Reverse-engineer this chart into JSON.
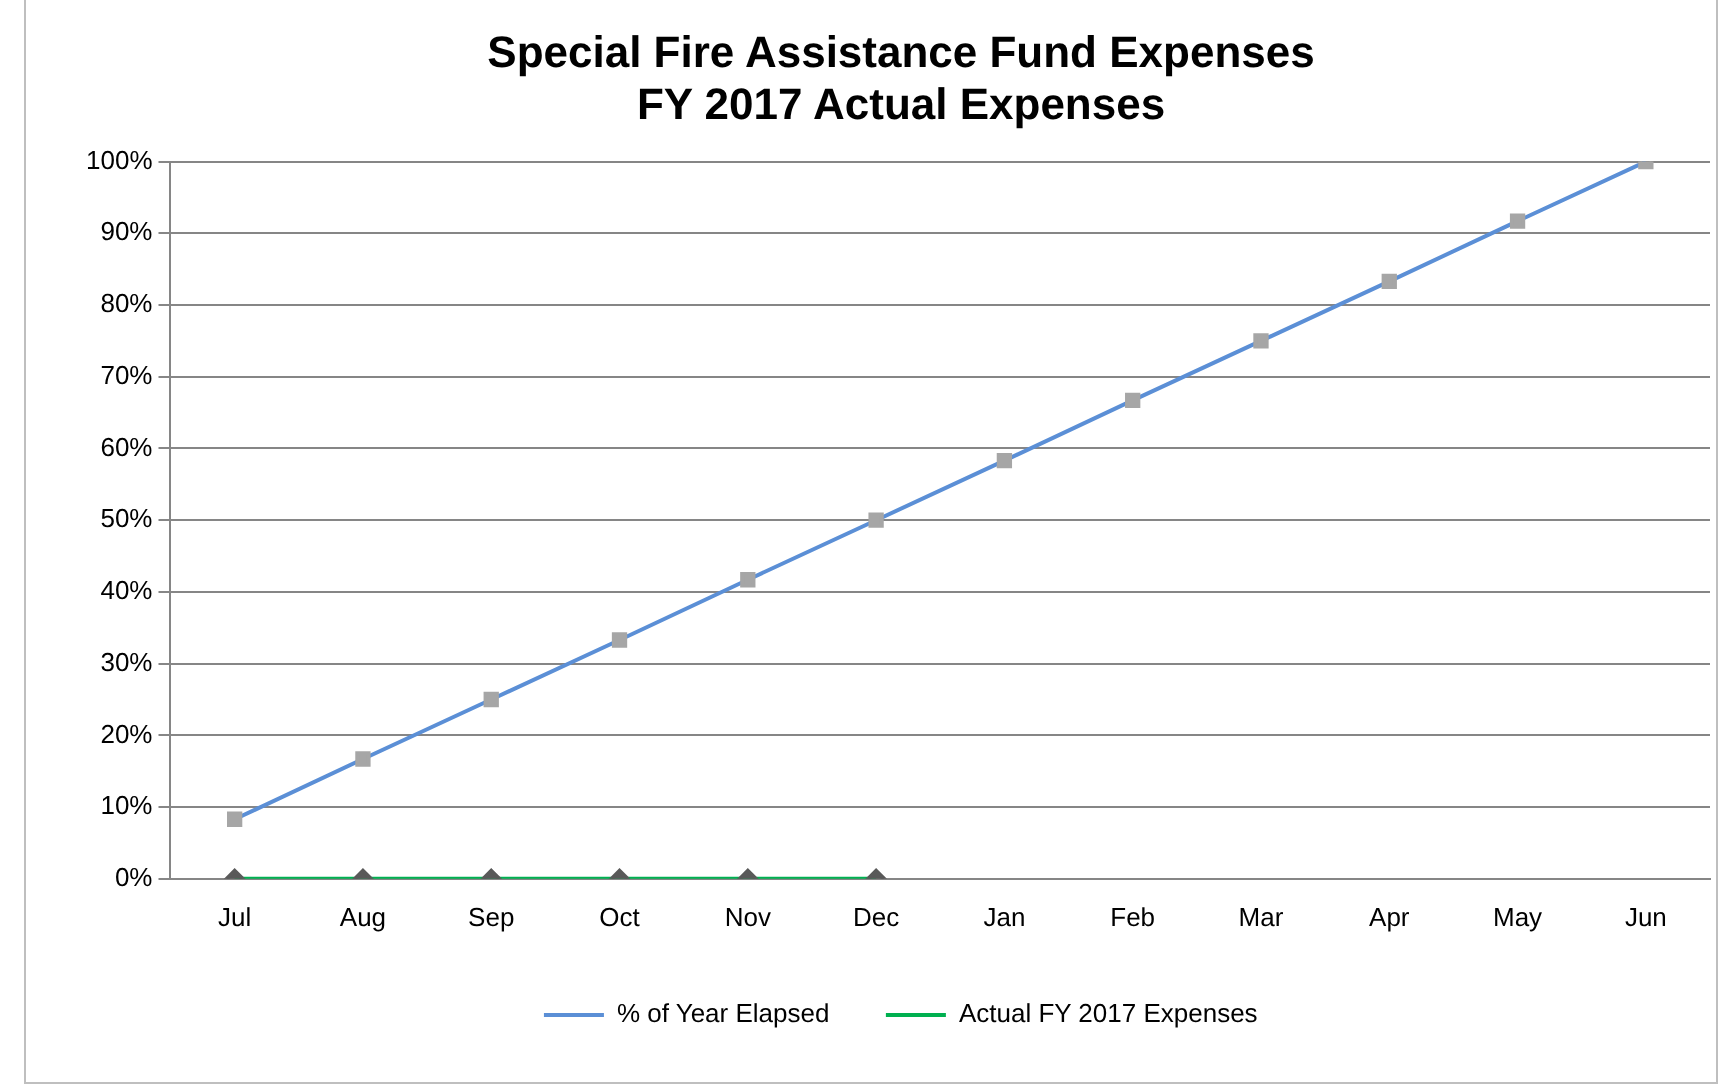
{
  "chart_data": {
    "type": "line",
    "title": [
      "Special Fire Assistance Fund Expenses",
      "FY 2017 Actual Expenses"
    ],
    "categories": [
      "Jul",
      "Aug",
      "Sep",
      "Oct",
      "Nov",
      "Dec",
      "Jan",
      "Feb",
      "Mar",
      "Apr",
      "May",
      "Jun"
    ],
    "series": [
      {
        "name": "% of Year Elapsed",
        "color": "#5b8fd6",
        "marker": "square",
        "values": [
          8.3,
          16.7,
          25,
          33.3,
          41.7,
          50,
          58.3,
          66.7,
          75,
          83.3,
          91.7,
          100
        ]
      },
      {
        "name": "Actual FY 2017 Expenses",
        "color": "#00b050",
        "marker": "diamond",
        "values": [
          0,
          0,
          0,
          0,
          0,
          0,
          null,
          null,
          null,
          null,
          null,
          null
        ]
      }
    ],
    "ylim": [
      0,
      100
    ],
    "yticks": [
      {
        "value": 0,
        "label": "0%"
      },
      {
        "value": 10,
        "label": "10%"
      },
      {
        "value": 20,
        "label": "20%"
      },
      {
        "value": 30,
        "label": "30%"
      },
      {
        "value": 40,
        "label": "40%"
      },
      {
        "value": 50,
        "label": "50%"
      },
      {
        "value": 60,
        "label": "60%"
      },
      {
        "value": 70,
        "label": "70%"
      },
      {
        "value": 80,
        "label": "80%"
      },
      {
        "value": 90,
        "label": "90%"
      },
      {
        "value": 100,
        "label": "100%"
      }
    ],
    "grid": "y",
    "legend": "bottom",
    "line_style": "solid"
  }
}
